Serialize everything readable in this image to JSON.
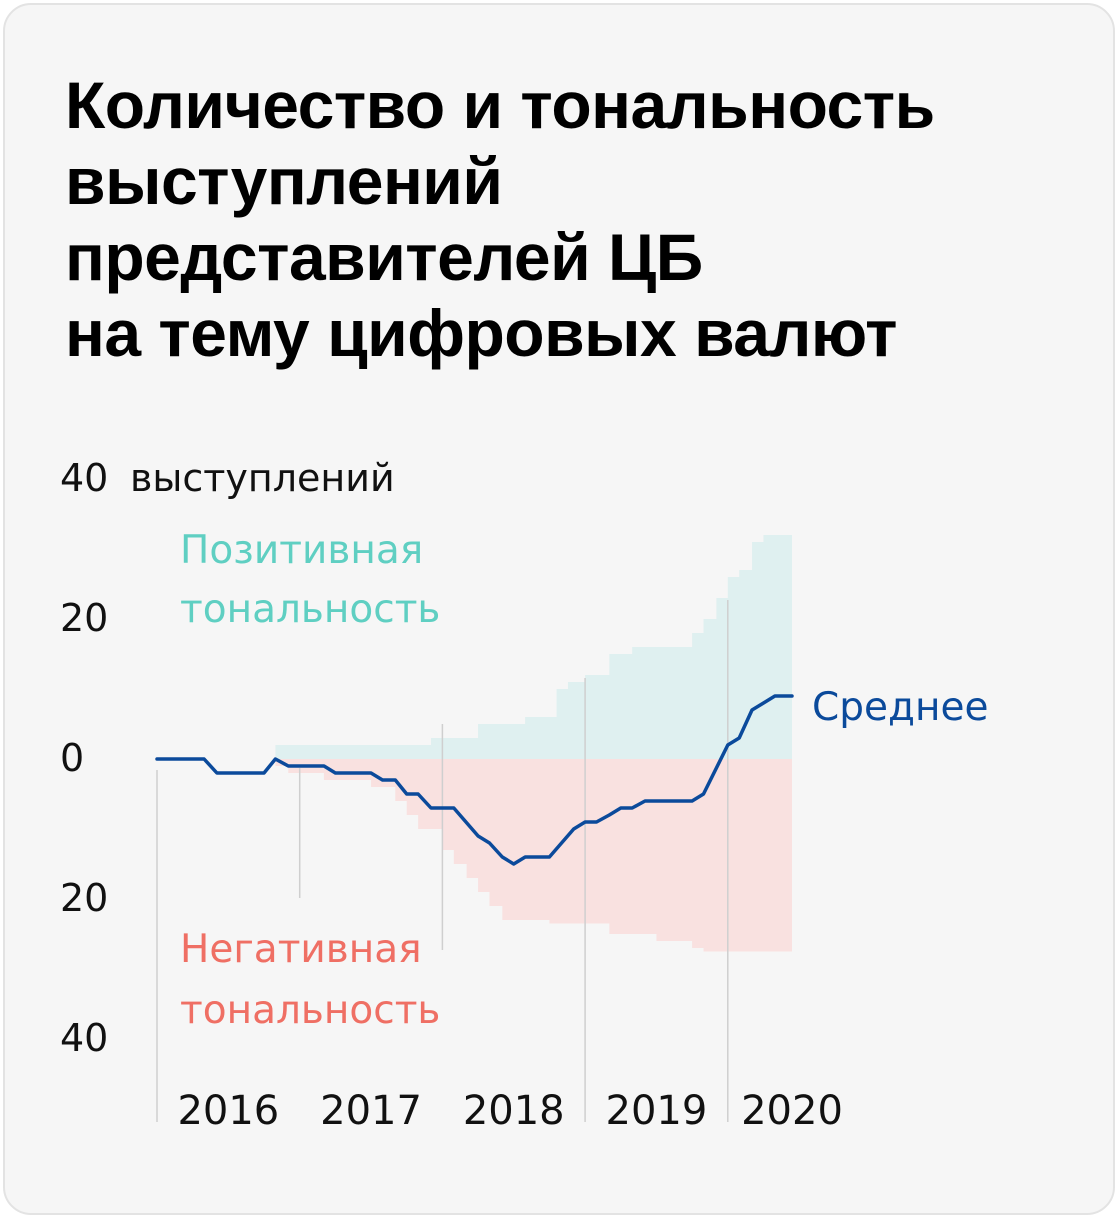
{
  "title_lines": [
    "Количество и тональность",
    "выступлений",
    "представителей ЦБ",
    "на тему цифровых валют"
  ],
  "colors": {
    "positive_fill": "#dff0f0",
    "negative_fill": "#f9e1e0",
    "positive_text": "#5fcfc2",
    "negative_text": "#ef6f64",
    "mean_line": "#0b4a9b",
    "background": "#f6f6f6"
  },
  "chart_data": {
    "type": "area",
    "y_unit_label": "выступлений",
    "y_ticks": [
      {
        "value": 40,
        "label": "40"
      },
      {
        "value": 20,
        "label": "20"
      },
      {
        "value": 0,
        "label": "0"
      },
      {
        "value": -20,
        "label": "20"
      },
      {
        "value": -40,
        "label": "40"
      }
    ],
    "ylim": [
      -40,
      40
    ],
    "x_range": [
      2016.0,
      2020.45
    ],
    "x_tick_labels": [
      "2016",
      "2017",
      "2018",
      "2019",
      "2020"
    ],
    "series": [
      {
        "name": "Позитивная тональность",
        "label_lines": [
          "Позитивная",
          "тональность"
        ],
        "step": true,
        "points": [
          [
            2016.0,
            0
          ],
          [
            2016.83,
            2
          ],
          [
            2017.75,
            2
          ],
          [
            2017.92,
            3
          ],
          [
            2018.0,
            3
          ],
          [
            2018.25,
            5
          ],
          [
            2018.45,
            5
          ],
          [
            2018.58,
            6
          ],
          [
            2018.72,
            6
          ],
          [
            2018.8,
            10
          ],
          [
            2018.88,
            11
          ],
          [
            2019.0,
            12
          ],
          [
            2019.17,
            15
          ],
          [
            2019.33,
            16
          ],
          [
            2019.58,
            16
          ],
          [
            2019.75,
            18
          ],
          [
            2019.83,
            20
          ],
          [
            2019.92,
            23
          ],
          [
            2020.0,
            26
          ],
          [
            2020.08,
            27
          ],
          [
            2020.17,
            31
          ],
          [
            2020.25,
            32
          ],
          [
            2020.45,
            32
          ]
        ]
      },
      {
        "name": "Негативная тональность",
        "label_lines": [
          "Негативная",
          "тональность"
        ],
        "step": true,
        "points": [
          [
            2016.0,
            0
          ],
          [
            2016.83,
            -1
          ],
          [
            2016.92,
            -2
          ],
          [
            2017.17,
            -3
          ],
          [
            2017.5,
            -4
          ],
          [
            2017.67,
            -6
          ],
          [
            2017.75,
            -8
          ],
          [
            2017.83,
            -10
          ],
          [
            2018.0,
            -13
          ],
          [
            2018.08,
            -15
          ],
          [
            2018.17,
            -17
          ],
          [
            2018.25,
            -19
          ],
          [
            2018.33,
            -21
          ],
          [
            2018.42,
            -23
          ],
          [
            2018.75,
            -23.5
          ],
          [
            2019.17,
            -25
          ],
          [
            2019.5,
            -26
          ],
          [
            2019.75,
            -27
          ],
          [
            2019.83,
            -27.5
          ],
          [
            2020.45,
            -27.5
          ]
        ]
      },
      {
        "name": "Среднее",
        "step": false,
        "points": [
          [
            2016.0,
            0
          ],
          [
            2016.33,
            0
          ],
          [
            2016.42,
            -2
          ],
          [
            2016.75,
            -2
          ],
          [
            2016.83,
            0
          ],
          [
            2016.92,
            -1
          ],
          [
            2017.17,
            -1
          ],
          [
            2017.25,
            -2
          ],
          [
            2017.5,
            -2
          ],
          [
            2017.58,
            -3
          ],
          [
            2017.67,
            -3
          ],
          [
            2017.75,
            -5
          ],
          [
            2017.83,
            -5
          ],
          [
            2017.92,
            -7
          ],
          [
            2018.08,
            -7
          ],
          [
            2018.25,
            -11
          ],
          [
            2018.33,
            -12
          ],
          [
            2018.42,
            -14
          ],
          [
            2018.5,
            -15
          ],
          [
            2018.58,
            -14
          ],
          [
            2018.75,
            -14
          ],
          [
            2018.92,
            -10
          ],
          [
            2019.0,
            -9
          ],
          [
            2019.08,
            -9
          ],
          [
            2019.17,
            -8
          ],
          [
            2019.25,
            -7
          ],
          [
            2019.33,
            -7
          ],
          [
            2019.42,
            -6
          ],
          [
            2019.75,
            -6
          ],
          [
            2019.83,
            -5
          ],
          [
            2020.0,
            2
          ],
          [
            2020.08,
            3
          ],
          [
            2020.17,
            7
          ],
          [
            2020.33,
            9
          ],
          [
            2020.45,
            9
          ]
        ]
      }
    ]
  }
}
